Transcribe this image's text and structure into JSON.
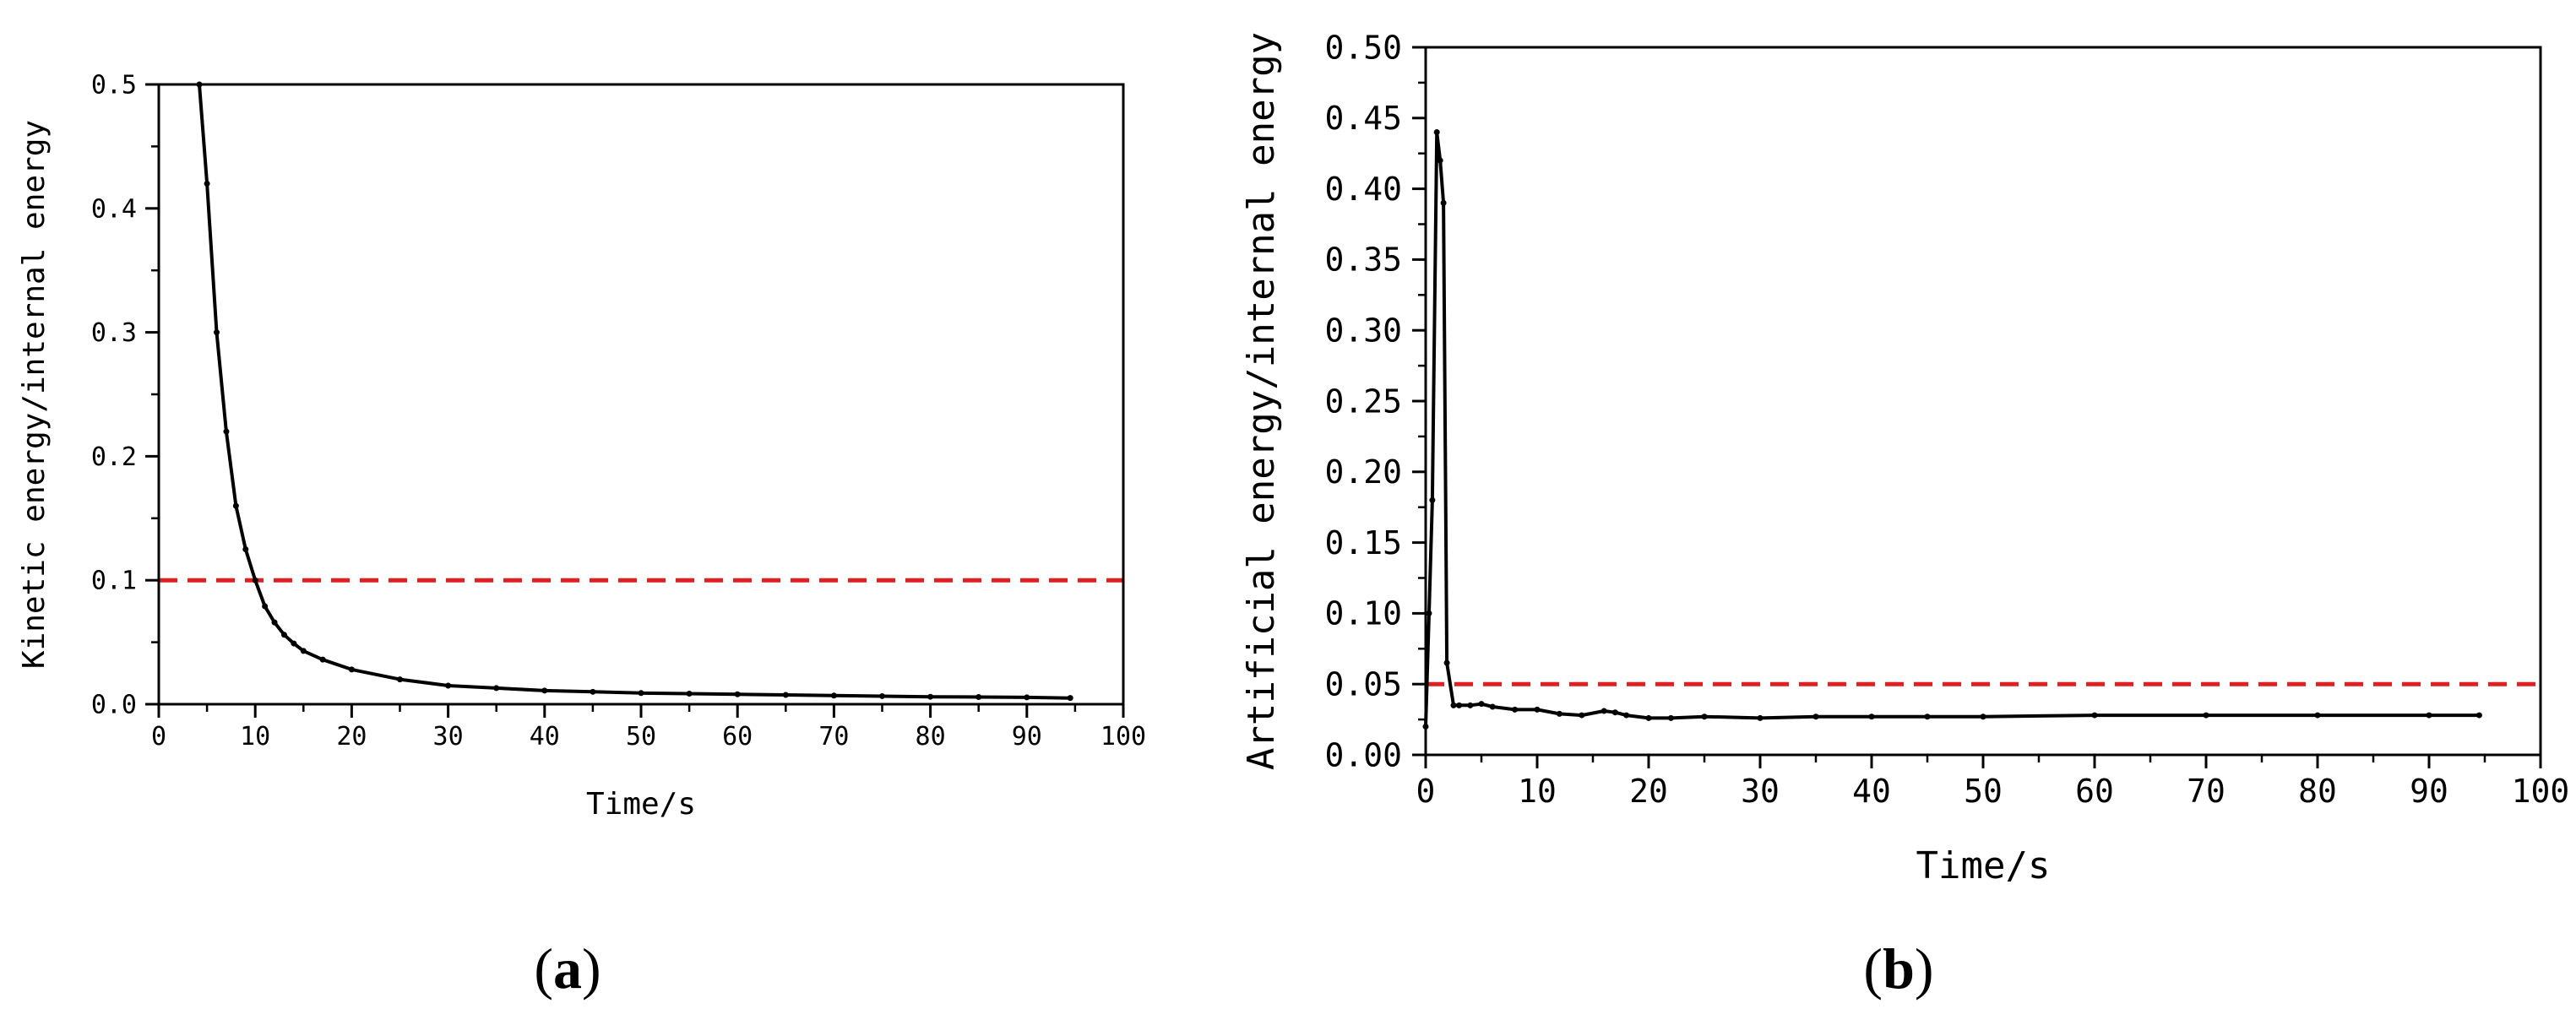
{
  "chart_data": [
    {
      "type": "line",
      "panel_label": "a",
      "xlabel": "Time/s",
      "ylabel": "Kinetic energy/internal energy",
      "xlim": [
        0,
        100
      ],
      "ylim": [
        0,
        0.5
      ],
      "x_ticks": [
        "0",
        "10",
        "20",
        "30",
        "40",
        "50",
        "60",
        "70",
        "80",
        "90",
        "100"
      ],
      "y_ticks": [
        "0.0",
        "0.1",
        "0.2",
        "0.3",
        "0.4",
        "0.5"
      ],
      "grid": false,
      "series": [
        {
          "color": "#000000",
          "x": [
            4.2,
            5,
            6,
            7,
            8,
            9,
            10,
            11,
            12,
            13,
            14,
            15,
            17,
            20,
            25,
            30,
            35,
            40,
            45,
            50,
            55,
            60,
            65,
            70,
            75,
            80,
            85,
            90,
            94.5
          ],
          "y": [
            0.5,
            0.42,
            0.3,
            0.22,
            0.16,
            0.125,
            0.1,
            0.079,
            0.066,
            0.056,
            0.049,
            0.043,
            0.036,
            0.028,
            0.02,
            0.015,
            0.013,
            0.011,
            0.01,
            0.009,
            0.0085,
            0.008,
            0.0075,
            0.007,
            0.0065,
            0.006,
            0.0058,
            0.0055,
            0.005
          ]
        }
      ],
      "threshold": {
        "y": 0.1,
        "color": "#e02020",
        "style": "dashed"
      }
    },
    {
      "type": "line",
      "panel_label": "b",
      "xlabel": "Time/s",
      "ylabel": "Artificial energy/internal energy",
      "xlim": [
        0,
        100
      ],
      "ylim": [
        0,
        0.5
      ],
      "x_ticks": [
        "0",
        "10",
        "20",
        "30",
        "40",
        "50",
        "60",
        "70",
        "80",
        "90",
        "100"
      ],
      "y_ticks": [
        "0.00",
        "0.05",
        "0.10",
        "0.15",
        "0.20",
        "0.25",
        "0.30",
        "0.35",
        "0.40",
        "0.45",
        "0.50"
      ],
      "grid": false,
      "series": [
        {
          "color": "#000000",
          "x": [
            0,
            0.3,
            0.6,
            1.0,
            1.3,
            1.6,
            1.9,
            2.5,
            3,
            4,
            5,
            6,
            8,
            10,
            12,
            14,
            16,
            17,
            18,
            20,
            22,
            25,
            30,
            35,
            40,
            45,
            50,
            60,
            70,
            80,
            90,
            94.5
          ],
          "y": [
            0.02,
            0.1,
            0.18,
            0.44,
            0.42,
            0.39,
            0.065,
            0.035,
            0.035,
            0.035,
            0.036,
            0.034,
            0.032,
            0.032,
            0.029,
            0.028,
            0.031,
            0.03,
            0.028,
            0.026,
            0.026,
            0.027,
            0.026,
            0.027,
            0.027,
            0.027,
            0.027,
            0.028,
            0.028,
            0.028,
            0.028,
            0.028
          ]
        }
      ],
      "threshold": {
        "y": 0.05,
        "color": "#e02020",
        "style": "dashed"
      }
    }
  ]
}
